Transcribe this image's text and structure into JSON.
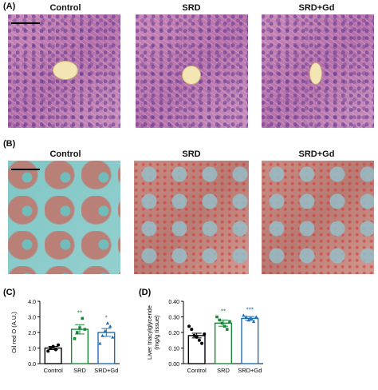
{
  "panel_a": {
    "label": "(A)",
    "titles": [
      "Control",
      "SRD",
      "SRD+Gd"
    ]
  },
  "panel_b": {
    "label": "(B)",
    "titles": [
      "Control",
      "SRD",
      "SRD+Gd"
    ]
  },
  "chart_data": [
    {
      "panel": "(C)",
      "type": "bar",
      "categories": [
        "Control",
        "SRD",
        "SRD+Gd"
      ],
      "values": [
        1.0,
        2.2,
        2.0
      ],
      "errors": [
        0.1,
        0.3,
        0.25
      ],
      "points": [
        [
          0.8,
          1.0,
          1.1,
          0.9,
          1.2
        ],
        [
          1.6,
          2.0,
          2.3,
          2.9,
          2.2
        ],
        [
          1.3,
          1.8,
          2.1,
          2.6,
          2.4,
          1.7
        ]
      ],
      "significance": [
        "",
        "**",
        "*"
      ],
      "ylabel": "Oil red  O (A.U.)",
      "ylim": [
        0,
        4.0
      ],
      "yticks": [
        "0.0",
        "1.0",
        "2.0",
        "3.0",
        "4.0"
      ],
      "colors": [
        "#000000",
        "#1a8a3a",
        "#1f6fb5"
      ]
    },
    {
      "panel": "(D)",
      "type": "bar",
      "categories": [
        "Control",
        "SRD",
        "SRD+Gd"
      ],
      "values": [
        0.18,
        0.26,
        0.29
      ],
      "errors": [
        0.015,
        0.02,
        0.012
      ],
      "points": [
        [
          0.24,
          0.22,
          0.18,
          0.17,
          0.15,
          0.13,
          0.19
        ],
        [
          0.3,
          0.28,
          0.26,
          0.24,
          0.22,
          0.27
        ],
        [
          0.31,
          0.3,
          0.28,
          0.29,
          0.27,
          0.3
        ]
      ],
      "significance": [
        "",
        "**",
        "***"
      ],
      "ylabel": "Liver triacylglyceride (mg/g tissue)",
      "ylabel_lines": [
        "Liver triacylglyceride",
        "(mg/g tissue)"
      ],
      "ylim": [
        0,
        0.4
      ],
      "yticks": [
        "0.00",
        "0.10",
        "0.20",
        "0.30",
        "0.40"
      ],
      "colors": [
        "#000000",
        "#1a8a3a",
        "#1f6fb5"
      ]
    }
  ]
}
